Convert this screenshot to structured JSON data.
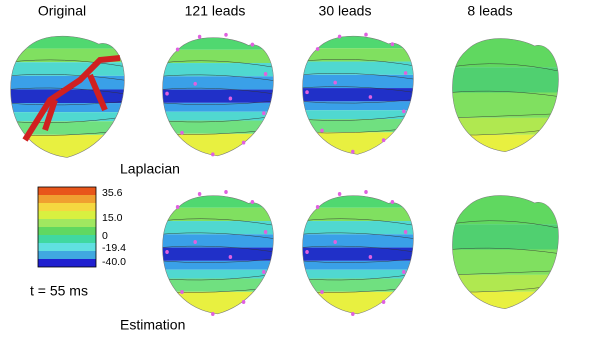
{
  "columns": [
    "Original",
    "121 leads",
    "30 leads",
    "8 leads"
  ],
  "rows": [
    "Laplacian",
    "Estimation"
  ],
  "colorbar": {
    "labels": [
      "35.6",
      "15.0",
      "0",
      "-19.4",
      "-40.0"
    ]
  },
  "time": "t = 55 ms"
}
